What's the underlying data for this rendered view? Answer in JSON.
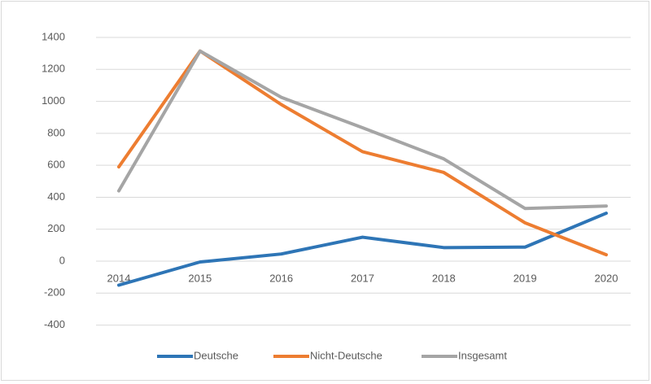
{
  "chart_data": {
    "type": "line",
    "categories": [
      "2014",
      "2015",
      "2016",
      "2017",
      "2018",
      "2019",
      "2020"
    ],
    "series": [
      {
        "name": "Deutsche",
        "color": "#2e75b6",
        "values": [
          -150,
          -5,
          45,
          150,
          85,
          88,
          300
        ]
      },
      {
        "name": "Nicht-Deutsche",
        "color": "#ed7d31",
        "values": [
          590,
          1315,
          980,
          685,
          555,
          240,
          40
        ]
      },
      {
        "name": "Insgesamt",
        "color": "#a5a5a5",
        "values": [
          440,
          1315,
          1025,
          835,
          640,
          330,
          345
        ]
      }
    ],
    "ylim": [
      -400,
      1400
    ],
    "yticks": [
      -400,
      -200,
      0,
      200,
      400,
      600,
      800,
      1000,
      1200,
      1400
    ],
    "grid": true,
    "legend": "bottom"
  }
}
